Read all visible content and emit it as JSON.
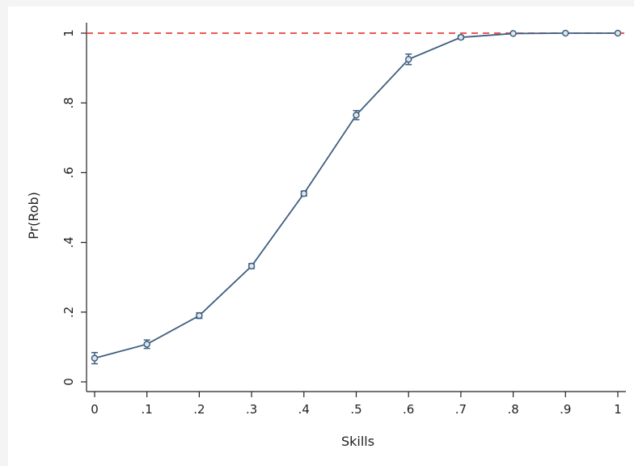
{
  "chart_data": {
    "type": "line",
    "title": "",
    "xlabel": "Skills",
    "ylabel": "Pr(Rob)",
    "xlim": [
      0,
      1
    ],
    "ylim": [
      0,
      1
    ],
    "x_ticks": [
      0,
      0.1,
      0.2,
      0.3,
      0.4,
      0.5,
      0.6,
      0.7,
      0.8,
      0.9,
      1
    ],
    "x_tick_labels": [
      "0",
      ".1",
      ".2",
      ".3",
      ".4",
      ".5",
      ".6",
      ".7",
      ".8",
      ".9",
      "1"
    ],
    "y_ticks": [
      0,
      0.2,
      0.4,
      0.6,
      0.8,
      1
    ],
    "y_tick_labels": [
      "0",
      ".2",
      ".4",
      ".6",
      ".8",
      "1"
    ],
    "grid": false,
    "series": [
      {
        "x": [
          0,
          0.1,
          0.2,
          0.3,
          0.4,
          0.5,
          0.6,
          0.7,
          0.8,
          0.9,
          1
        ],
        "y": [
          0.068,
          0.108,
          0.19,
          0.332,
          0.54,
          0.765,
          0.925,
          0.988,
          0.999,
          1.0,
          1.0
        ],
        "ci_low": [
          0.052,
          0.096,
          0.182,
          0.325,
          0.533,
          0.752,
          0.91,
          0.983,
          0.998,
          0.999,
          0.999
        ],
        "ci_high": [
          0.084,
          0.12,
          0.198,
          0.339,
          0.547,
          0.778,
          0.94,
          0.993,
          1.0,
          1.0,
          1.0
        ],
        "color": "#3e5f80",
        "marker": "hollow-circle"
      }
    ],
    "reference_line": {
      "y": 1,
      "color": "#e8423c",
      "style": "dashed"
    }
  }
}
